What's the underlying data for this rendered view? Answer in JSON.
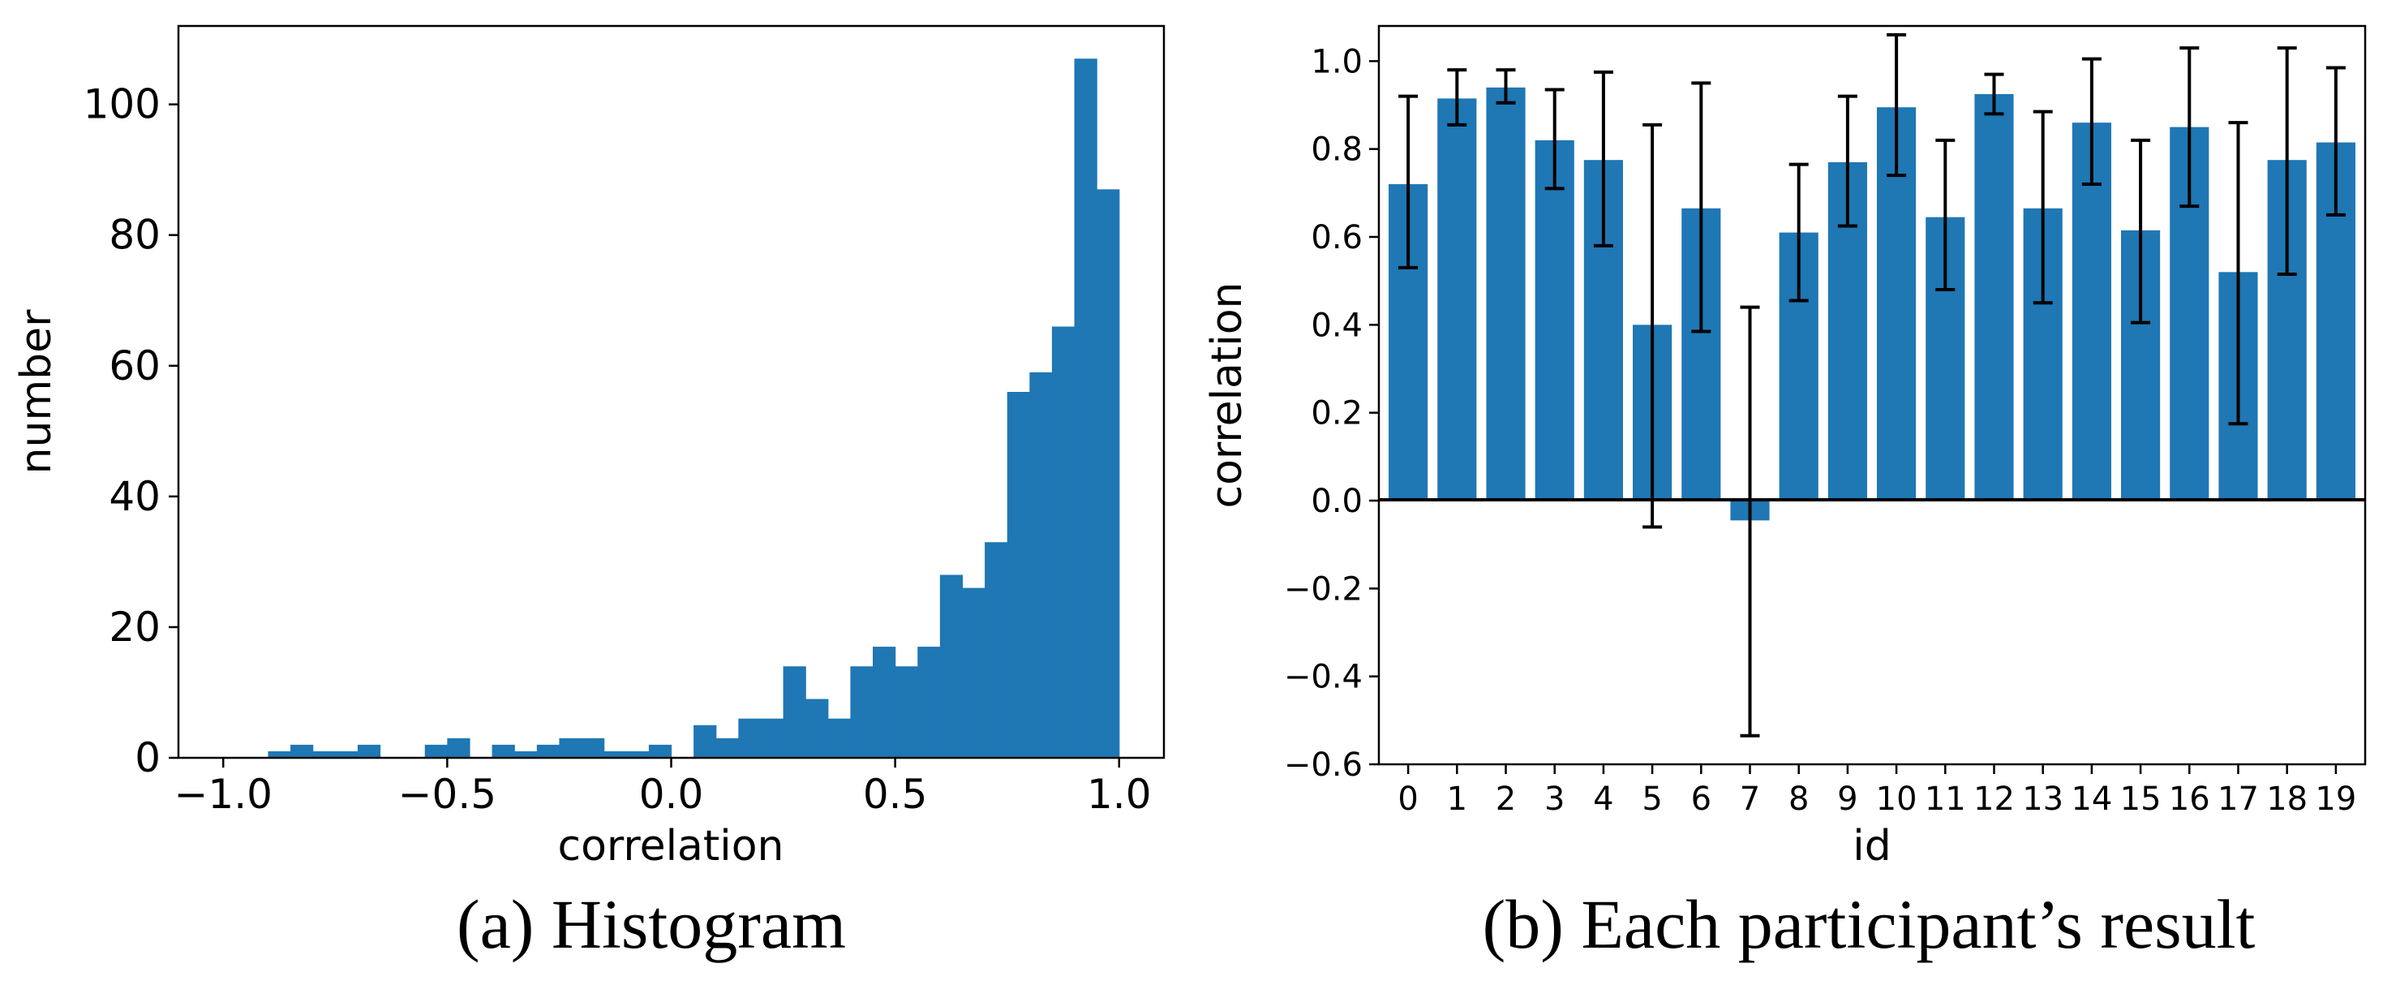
{
  "chart_data": [
    {
      "type": "bar",
      "subtype": "histogram",
      "caption": "(a) Histogram",
      "xlabel": "correlation",
      "ylabel": "number",
      "xlim": [
        -1.1,
        1.1
      ],
      "ylim": [
        0,
        112
      ],
      "xticks": [
        -1.0,
        -0.5,
        0.0,
        0.5,
        1.0
      ],
      "xtick_labels": [
        "−1.0",
        "−0.5",
        "0.0",
        "0.5",
        "1.0"
      ],
      "yticks": [
        0,
        20,
        40,
        60,
        80,
        100
      ],
      "ytick_labels": [
        "0",
        "20",
        "40",
        "60",
        "80",
        "100"
      ],
      "bin_start": -0.95,
      "bin_width": 0.05,
      "counts": [
        0,
        1,
        2,
        1,
        1,
        2,
        0,
        0,
        2,
        3,
        0,
        2,
        1,
        2,
        3,
        3,
        1,
        1,
        2,
        0,
        5,
        3,
        6,
        6,
        14,
        9,
        6,
        14,
        17,
        14,
        17,
        28,
        26,
        33,
        56,
        59,
        66,
        107,
        87
      ],
      "color": "#1f77b4"
    },
    {
      "type": "bar",
      "caption": "(b) Each participant’s result",
      "xlabel": "id",
      "ylabel": "correlation",
      "ylim": [
        -0.6,
        1.08
      ],
      "yticks": [
        -0.6,
        -0.4,
        -0.2,
        0.0,
        0.2,
        0.4,
        0.6,
        0.8,
        1.0
      ],
      "ytick_labels": [
        "−0.6",
        "−0.4",
        "−0.2",
        "0.0",
        "0.2",
        "0.4",
        "0.6",
        "0.8",
        "1.0"
      ],
      "categories": [
        "0",
        "1",
        "2",
        "3",
        "4",
        "5",
        "6",
        "7",
        "8",
        "9",
        "10",
        "11",
        "12",
        "13",
        "14",
        "15",
        "16",
        "17",
        "18",
        "19"
      ],
      "values": [
        0.72,
        0.915,
        0.94,
        0.82,
        0.775,
        0.4,
        0.665,
        -0.045,
        0.61,
        0.77,
        0.895,
        0.645,
        0.925,
        0.665,
        0.86,
        0.615,
        0.85,
        0.52,
        0.775,
        0.815
      ],
      "error_low": [
        0.53,
        0.855,
        0.905,
        0.71,
        0.58,
        -0.06,
        0.385,
        -0.535,
        0.455,
        0.625,
        0.74,
        0.48,
        0.88,
        0.45,
        0.72,
        0.405,
        0.67,
        0.175,
        0.515,
        0.65
      ],
      "error_high": [
        0.92,
        0.98,
        0.98,
        0.935,
        0.975,
        0.855,
        0.95,
        0.44,
        0.765,
        0.92,
        1.06,
        0.82,
        0.97,
        0.885,
        1.005,
        0.82,
        1.03,
        0.86,
        1.03,
        0.985
      ],
      "color": "#1f77b4"
    }
  ]
}
